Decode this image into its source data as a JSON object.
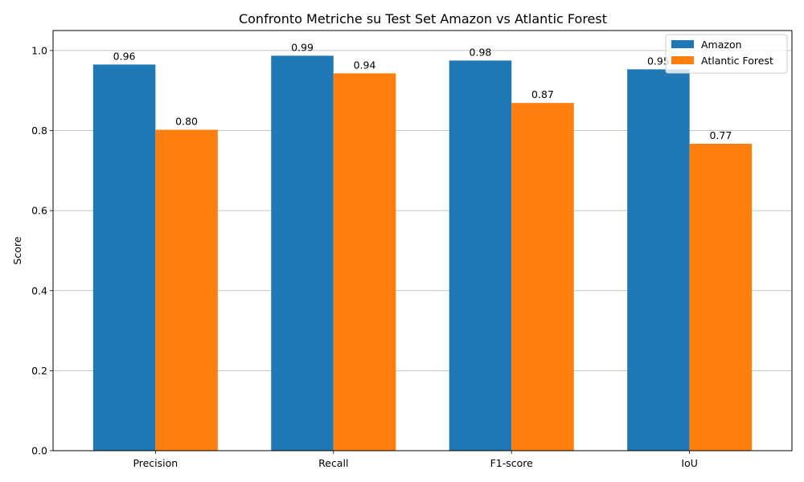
{
  "chart_data": {
    "type": "bar",
    "title": "Confronto Metriche su Test Set Amazon vs Atlantic Forest",
    "xlabel": "",
    "ylabel": "Score",
    "ylim": [
      0,
      1.05
    ],
    "yticks": [
      "0.0",
      "0.2",
      "0.4",
      "0.6",
      "0.8",
      "1.0"
    ],
    "ytick_values": [
      0,
      0.2,
      0.4,
      0.6,
      0.8,
      1.0
    ],
    "grid": "y",
    "legend_position": "top-right",
    "categories": [
      "Precision",
      "Recall",
      "F1-score",
      "IoU"
    ],
    "series": [
      {
        "name": "Amazon",
        "color": "#1f77b4",
        "values": [
          0.965,
          0.987,
          0.975,
          0.953
        ],
        "labels": [
          "0.96",
          "0.99",
          "0.98",
          "0.95"
        ]
      },
      {
        "name": "Atlantic Forest",
        "color": "#ff7f0e",
        "values": [
          0.802,
          0.943,
          0.869,
          0.767
        ],
        "labels": [
          "0.80",
          "0.94",
          "0.87",
          "0.77"
        ]
      }
    ]
  }
}
